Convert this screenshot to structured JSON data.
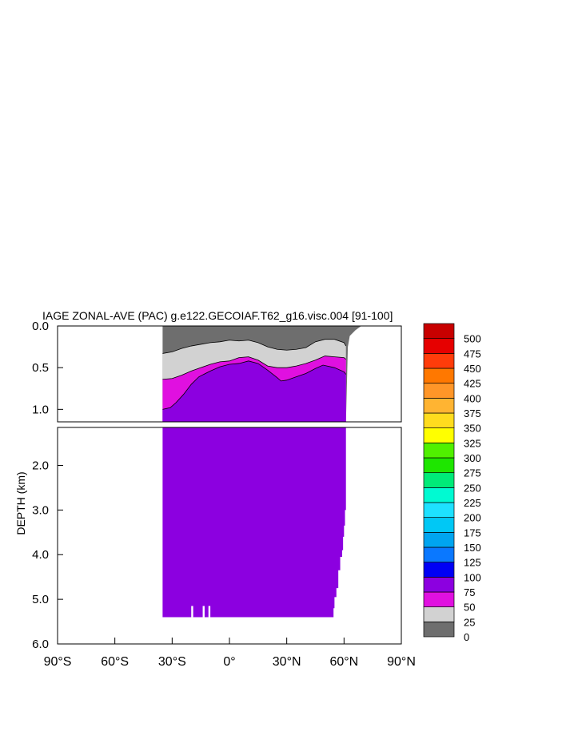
{
  "chart_data": {
    "type": "heatmap",
    "title": "IAGE ZONAL-AVE (PAC) g.e122.GECOIAF.T62_g16.visc.004 [91-100]",
    "ylabel": "DEPTH (km)",
    "xlim": [
      -90,
      90
    ],
    "ylim_upper_panel": [
      0.0,
      1.15
    ],
    "ylim_lower_panel": [
      1.15,
      6.0
    ],
    "x_ticks": [
      "90°S",
      "60°S",
      "30°S",
      "0°",
      "30°N",
      "60°N",
      "90°N"
    ],
    "x_tick_values": [
      -90,
      -60,
      -30,
      0,
      30,
      60,
      90
    ],
    "y_ticks_upper": [
      "0.0",
      "0.5",
      "1.0"
    ],
    "y_tick_values_upper": [
      0.0,
      0.5,
      1.0
    ],
    "y_ticks_lower": [
      "2.0",
      "3.0",
      "4.0",
      "5.0",
      "6.0"
    ],
    "y_tick_values_lower": [
      2.0,
      3.0,
      4.0,
      5.0,
      6.0
    ],
    "colorbar": {
      "levels": [
        "0",
        "25",
        "50",
        "75",
        "100",
        "125",
        "150",
        "175",
        "200",
        "225",
        "250",
        "275",
        "300",
        "325",
        "350",
        "375",
        "400",
        "425",
        "450",
        "475",
        "500"
      ],
      "colors": [
        "#6e6e6e",
        "#d2d2d2",
        "#e010e0",
        "#8c00e0",
        "#0000f5",
        "#0a78ff",
        "#00a5f0",
        "#00c8f5",
        "#1ee1ff",
        "#00fad2",
        "#00eb78",
        "#1ee600",
        "#50f000",
        "#ffff00",
        "#ffdc1e",
        "#ffb432",
        "#ff9628",
        "#ff7800",
        "#ff3c0a",
        "#e60000",
        "#c80000"
      ]
    },
    "contour_lines": {
      "iage_25": [
        [
          -35,
          0.33
        ],
        [
          -30,
          0.31
        ],
        [
          -25,
          0.27
        ],
        [
          -20,
          0.24
        ],
        [
          -15,
          0.22
        ],
        [
          -10,
          0.2
        ],
        [
          -5,
          0.19
        ],
        [
          0,
          0.17
        ],
        [
          5,
          0.18
        ],
        [
          10,
          0.17
        ],
        [
          15,
          0.2
        ],
        [
          20,
          0.25
        ],
        [
          25,
          0.28
        ],
        [
          30,
          0.29
        ],
        [
          35,
          0.28
        ],
        [
          40,
          0.26
        ],
        [
          45,
          0.19
        ],
        [
          50,
          0.16
        ],
        [
          55,
          0.16
        ],
        [
          60,
          0.2
        ],
        [
          61,
          0.24
        ]
      ],
      "iage_50": [
        [
          -35,
          0.64
        ],
        [
          -30,
          0.63
        ],
        [
          -25,
          0.59
        ],
        [
          -20,
          0.54
        ],
        [
          -15,
          0.5
        ],
        [
          -10,
          0.46
        ],
        [
          -5,
          0.43
        ],
        [
          0,
          0.42
        ],
        [
          5,
          0.38
        ],
        [
          10,
          0.37
        ],
        [
          15,
          0.41
        ],
        [
          20,
          0.48
        ],
        [
          25,
          0.5
        ],
        [
          30,
          0.5
        ],
        [
          35,
          0.48
        ],
        [
          40,
          0.45
        ],
        [
          45,
          0.41
        ],
        [
          50,
          0.36
        ],
        [
          55,
          0.37
        ],
        [
          60,
          0.38
        ],
        [
          61,
          0.4
        ]
      ],
      "iage_75": [
        [
          -35,
          1.0
        ],
        [
          -31,
          0.98
        ],
        [
          -28,
          0.92
        ],
        [
          -24,
          0.82
        ],
        [
          -20,
          0.7
        ],
        [
          -16,
          0.61
        ],
        [
          -10,
          0.54
        ],
        [
          -5,
          0.49
        ],
        [
          0,
          0.46
        ],
        [
          5,
          0.45
        ],
        [
          10,
          0.42
        ],
        [
          15,
          0.45
        ],
        [
          20,
          0.53
        ],
        [
          25,
          0.62
        ],
        [
          27,
          0.66
        ],
        [
          30,
          0.65
        ],
        [
          35,
          0.61
        ],
        [
          40,
          0.57
        ],
        [
          45,
          0.51
        ],
        [
          49,
          0.47
        ],
        [
          55,
          0.5
        ],
        [
          60,
          0.55
        ],
        [
          61,
          0.58
        ]
      ]
    },
    "domain": {
      "west_lat": -35,
      "north_lat_by_depth": [
        [
          0.0,
          69
        ],
        [
          0.05,
          66
        ],
        [
          0.12,
          63
        ],
        [
          0.25,
          62
        ],
        [
          1.15,
          61
        ],
        [
          2.4,
          61
        ],
        [
          3.0,
          60.5
        ],
        [
          3.35,
          60
        ],
        [
          3.6,
          59.5
        ],
        [
          3.9,
          59
        ],
        [
          4.05,
          58
        ],
        [
          4.35,
          57
        ],
        [
          4.75,
          56
        ],
        [
          4.95,
          55
        ],
        [
          5.2,
          54.5
        ],
        [
          5.4,
          53.5
        ]
      ],
      "bottom_depth": 5.4,
      "seafloor_gaps": [
        [
          -20,
          -19
        ],
        [
          -14,
          -13
        ],
        [
          -11,
          -10
        ]
      ]
    },
    "fill_below_75": "#8c00e0",
    "grid": false,
    "legend": "colorbar-right"
  }
}
